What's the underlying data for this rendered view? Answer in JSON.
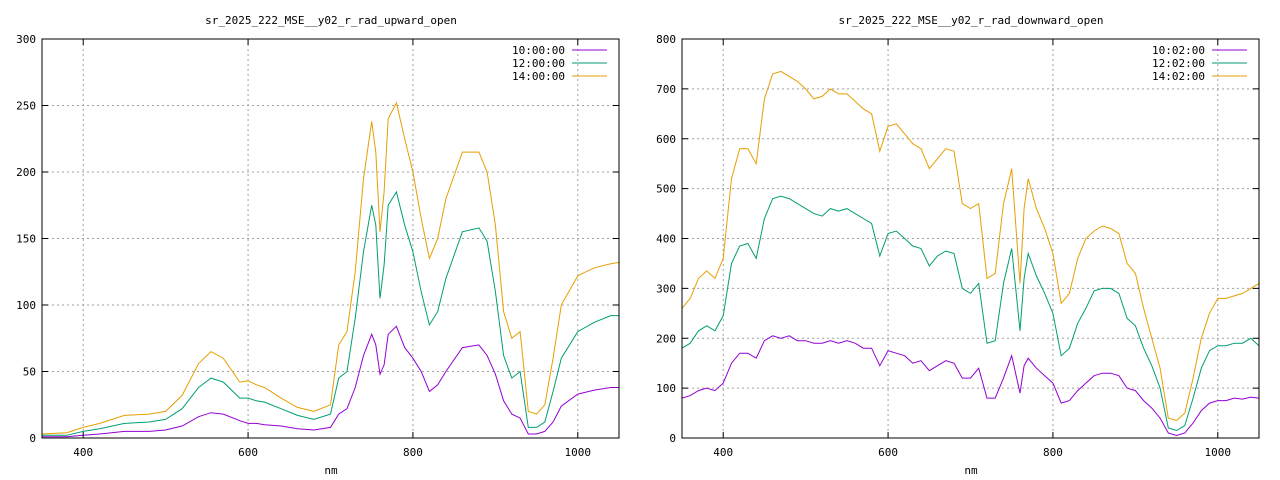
{
  "chart_data": [
    {
      "type": "line",
      "title": "sr_2025_222_MSE__y02_r_rad_upward_open",
      "xlabel": "nm",
      "ylabel": "",
      "xlim": [
        350,
        1050
      ],
      "ylim": [
        0,
        300
      ],
      "xticks": [
        400,
        600,
        800,
        1000
      ],
      "yticks": [
        0,
        50,
        100,
        150,
        200,
        250,
        300
      ],
      "grid": true,
      "legend_position": "top-right",
      "x": [
        350,
        380,
        400,
        420,
        450,
        480,
        500,
        520,
        540,
        555,
        570,
        590,
        600,
        610,
        620,
        640,
        660,
        680,
        700,
        710,
        720,
        730,
        740,
        750,
        755,
        760,
        765,
        770,
        780,
        790,
        800,
        810,
        820,
        830,
        840,
        860,
        880,
        890,
        900,
        910,
        920,
        930,
        940,
        950,
        960,
        970,
        980,
        1000,
        1020,
        1040,
        1050
      ],
      "series": [
        {
          "name": "10:00:00",
          "color": "#9400d3",
          "values": [
            1,
            1,
            2,
            3,
            5,
            5,
            6,
            9,
            16,
            19,
            18,
            13,
            11,
            11,
            10,
            9,
            7,
            6,
            8,
            18,
            22,
            38,
            62,
            78,
            70,
            48,
            55,
            78,
            84,
            68,
            60,
            50,
            35,
            40,
            50,
            68,
            70,
            62,
            48,
            28,
            18,
            15,
            3,
            3,
            5,
            12,
            24,
            33,
            36,
            38,
            38
          ]
        },
        {
          "name": "12:00:00",
          "color": "#009e73",
          "values": [
            2,
            2,
            5,
            7,
            11,
            12,
            14,
            22,
            38,
            45,
            42,
            30,
            30,
            28,
            27,
            22,
            17,
            14,
            18,
            45,
            50,
            90,
            140,
            175,
            160,
            105,
            130,
            175,
            185,
            160,
            140,
            110,
            85,
            95,
            120,
            155,
            158,
            148,
            110,
            62,
            45,
            50,
            8,
            8,
            12,
            35,
            60,
            80,
            87,
            92,
            92
          ]
        },
        {
          "name": "14:00:00",
          "color": "#e69f00",
          "values": [
            3,
            4,
            8,
            11,
            17,
            18,
            20,
            32,
            56,
            65,
            60,
            42,
            43,
            40,
            38,
            30,
            23,
            20,
            25,
            70,
            80,
            125,
            195,
            238,
            215,
            155,
            185,
            240,
            252,
            225,
            200,
            165,
            135,
            150,
            180,
            215,
            215,
            200,
            160,
            95,
            75,
            80,
            20,
            18,
            25,
            60,
            100,
            122,
            128,
            131,
            132
          ]
        }
      ]
    },
    {
      "type": "line",
      "title": "sr_2025_222_MSE__y02_r_rad_downward_open",
      "xlabel": "nm",
      "ylabel": "",
      "xlim": [
        350,
        1050
      ],
      "ylim": [
        0,
        800
      ],
      "xticks": [
        400,
        600,
        800,
        1000
      ],
      "yticks": [
        0,
        100,
        200,
        300,
        400,
        500,
        600,
        700,
        800
      ],
      "grid": true,
      "legend_position": "top-right",
      "x": [
        350,
        360,
        370,
        380,
        390,
        400,
        410,
        420,
        430,
        440,
        450,
        460,
        470,
        480,
        490,
        500,
        510,
        520,
        530,
        540,
        550,
        560,
        570,
        580,
        590,
        600,
        610,
        620,
        630,
        640,
        650,
        660,
        670,
        680,
        690,
        700,
        710,
        720,
        730,
        740,
        750,
        760,
        765,
        770,
        780,
        790,
        800,
        810,
        820,
        830,
        840,
        850,
        860,
        870,
        880,
        890,
        900,
        910,
        920,
        930,
        940,
        950,
        960,
        970,
        980,
        990,
        1000,
        1010,
        1020,
        1030,
        1040,
        1050
      ],
      "series": [
        {
          "name": "10:02:00",
          "color": "#9400d3",
          "values": [
            80,
            85,
            95,
            100,
            95,
            110,
            150,
            170,
            170,
            160,
            195,
            205,
            200,
            205,
            195,
            195,
            190,
            190,
            195,
            190,
            195,
            190,
            180,
            180,
            145,
            175,
            170,
            165,
            150,
            155,
            135,
            145,
            155,
            150,
            120,
            120,
            140,
            80,
            80,
            120,
            165,
            90,
            145,
            160,
            140,
            125,
            110,
            70,
            75,
            95,
            110,
            125,
            130,
            130,
            125,
            100,
            95,
            75,
            60,
            40,
            10,
            5,
            10,
            30,
            55,
            70,
            75,
            75,
            80,
            78,
            82,
            80
          ]
        },
        {
          "name": "12:02:00",
          "color": "#009e73",
          "values": [
            180,
            190,
            215,
            225,
            215,
            245,
            350,
            385,
            390,
            360,
            440,
            480,
            485,
            480,
            470,
            460,
            450,
            445,
            460,
            455,
            460,
            450,
            440,
            430,
            365,
            410,
            415,
            400,
            385,
            380,
            345,
            365,
            375,
            370,
            300,
            290,
            310,
            190,
            195,
            310,
            380,
            215,
            320,
            370,
            325,
            290,
            250,
            165,
            180,
            230,
            260,
            295,
            300,
            300,
            290,
            240,
            225,
            180,
            145,
            100,
            20,
            15,
            25,
            80,
            140,
            175,
            185,
            185,
            190,
            190,
            200,
            185
          ]
        },
        {
          "name": "14:02:00",
          "color": "#e69f00",
          "values": [
            260,
            280,
            320,
            335,
            320,
            360,
            520,
            580,
            580,
            550,
            680,
            730,
            735,
            725,
            715,
            700,
            680,
            685,
            700,
            690,
            690,
            675,
            660,
            650,
            575,
            625,
            630,
            610,
            590,
            580,
            540,
            560,
            580,
            575,
            470,
            460,
            470,
            320,
            330,
            470,
            540,
            310,
            460,
            520,
            460,
            420,
            370,
            270,
            290,
            360,
            400,
            415,
            425,
            420,
            410,
            350,
            330,
            260,
            200,
            140,
            40,
            35,
            50,
            120,
            200,
            250,
            280,
            280,
            285,
            290,
            300,
            310
          ]
        }
      ]
    }
  ]
}
